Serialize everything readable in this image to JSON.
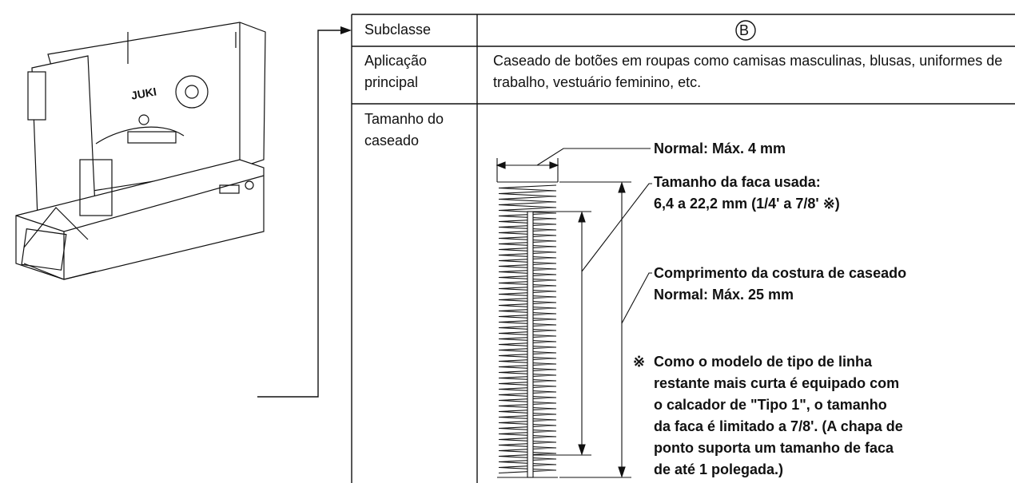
{
  "table": {
    "rows": [
      {
        "label": "Subclasse",
        "value": "B"
      },
      {
        "label": "Aplicação principal",
        "value": "Caseado de botões em roupas como camisas masculinas, blusas, uniformes de trabalho, vestuário feminino, etc."
      },
      {
        "label": "Tamanho do caseado"
      }
    ]
  },
  "diagram": {
    "width_label": "Normal: Máx. 4 mm",
    "knife_label": [
      "Tamanho da faca usada:",
      "6,4 a 22,2 mm (1/4' a 7/8' ※)"
    ],
    "length_label": [
      "Comprimento da costura de caseado",
      "Normal: Máx. 25 mm"
    ],
    "note_mark": "※",
    "note": [
      "Como o modelo de tipo de linha",
      "restante mais curta é equipado com",
      "o calcador de \"Tipo 1\", o tamanho",
      "da faca é limitado a 7/8'. (A chapa de",
      "ponto suporta um tamanho de faca",
      "de até 1 polegada.)"
    ]
  },
  "machine": {
    "brand": "JUKI"
  }
}
